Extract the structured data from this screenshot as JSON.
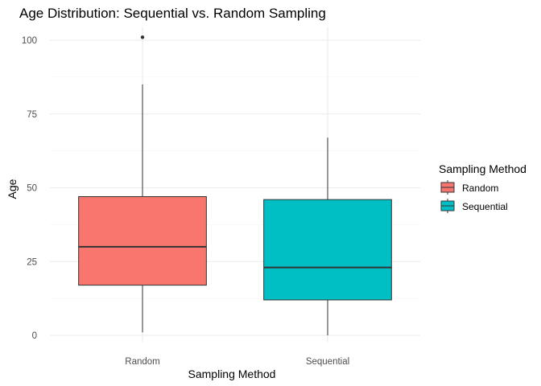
{
  "chart_data": {
    "type": "boxplot",
    "title": "Age Distribution: Sequential vs. Random Sampling",
    "xlabel": "Sampling Method",
    "ylabel": "Age",
    "categories": [
      "Random",
      "Sequential"
    ],
    "ylim": [
      -2,
      104
    ],
    "yticks": [
      0,
      25,
      50,
      75,
      100
    ],
    "grid": true,
    "legend_position": "right",
    "legend": {
      "title": "Sampling Method",
      "items": [
        {
          "label": "Random",
          "color": "#F8766D"
        },
        {
          "label": "Sequential",
          "color": "#00BFC4"
        }
      ]
    },
    "series": [
      {
        "category": "Random",
        "color": "#F8766D",
        "min": 1,
        "q1": 17,
        "median": 30,
        "q3": 47,
        "max": 85,
        "outliers": [
          101
        ]
      },
      {
        "category": "Sequential",
        "color": "#00BFC4",
        "min": 0,
        "q1": 12,
        "median": 23,
        "q3": 46,
        "max": 67,
        "outliers": []
      }
    ]
  }
}
